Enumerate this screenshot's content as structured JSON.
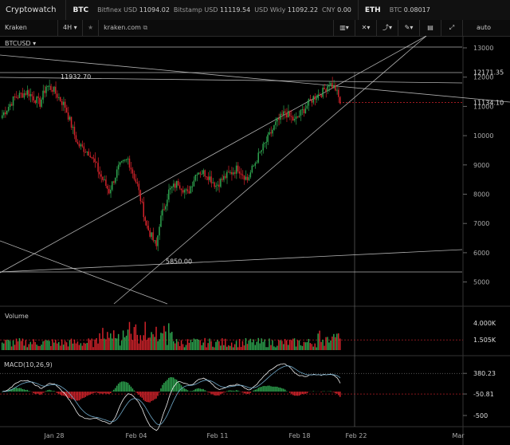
{
  "app": {
    "name": "Cryptowatch"
  },
  "header": {
    "btc_label": "BTC",
    "tickers": [
      {
        "exchange": "Bitfinex USD",
        "price": "11094.02"
      },
      {
        "exchange": "Bitstamp USD",
        "price": "11119.54"
      },
      {
        "exchange": "USD Wkly",
        "price": "11092.22"
      },
      {
        "exchange": "CNY",
        "price": "0.00"
      }
    ],
    "eth_label": "ETH",
    "eth_ticker": {
      "exchange": "BTC",
      "price": "0.08017"
    }
  },
  "toolbar": {
    "market": "Kraken BTCUSD",
    "interval": "4H",
    "exchange_link": "kraken.com",
    "scale_mode": "auto"
  },
  "colors": {
    "up": "#2ea44f",
    "down": "#d4232b",
    "line": "#cfcfcf"
  },
  "chart_data": {
    "type": "candlestick",
    "x_ticks": [
      "Jan 28",
      "Feb 04",
      "Feb 11",
      "Feb 18",
      "Feb 22",
      "Mar"
    ],
    "price_ticks": [
      5000,
      6000,
      7000,
      8000,
      9000,
      10000,
      11000,
      12000,
      13000
    ],
    "price_range": [
      4300,
      13400
    ],
    "price_labels": [
      "12171.35",
      "11134.10"
    ],
    "annotations": [
      {
        "text": "11932.70",
        "value": 11932.7
      },
      {
        "text": "5850.00",
        "value": 5850.0
      }
    ],
    "close_anchors": [
      [
        0,
        10700
      ],
      [
        8,
        11300
      ],
      [
        16,
        11500
      ],
      [
        24,
        11100
      ],
      [
        28,
        11700
      ],
      [
        32,
        11600
      ],
      [
        40,
        11000
      ],
      [
        48,
        9700
      ],
      [
        56,
        9400
      ],
      [
        62,
        8700
      ],
      [
        68,
        8100
      ],
      [
        74,
        8900
      ],
      [
        80,
        9200
      ],
      [
        86,
        8300
      ],
      [
        92,
        6900
      ],
      [
        98,
        6200
      ],
      [
        100,
        7000
      ],
      [
        106,
        8100
      ],
      [
        112,
        8400
      ],
      [
        118,
        8000
      ],
      [
        124,
        8800
      ],
      [
        130,
        8700
      ],
      [
        136,
        8300
      ],
      [
        142,
        8600
      ],
      [
        150,
        8900
      ],
      [
        156,
        8500
      ],
      [
        162,
        9200
      ],
      [
        168,
        9800
      ],
      [
        174,
        10400
      ],
      [
        180,
        10800
      ],
      [
        186,
        10500
      ],
      [
        192,
        10900
      ],
      [
        198,
        11300
      ],
      [
        204,
        11500
      ],
      [
        208,
        11800
      ],
      [
        212,
        11600
      ],
      [
        215,
        11134
      ]
    ],
    "volume": {
      "label": "Volume",
      "ticks": [
        "4.000K",
        "1.505K"
      ]
    },
    "macd": {
      "label": "MACD(10,26,9)",
      "ticks": [
        "380.23",
        "-50.81",
        "-500"
      ]
    }
  }
}
